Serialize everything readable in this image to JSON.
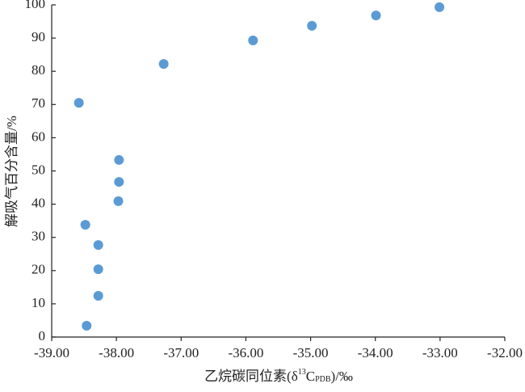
{
  "chart_data": {
    "type": "scatter",
    "x_label": {
      "main": "乙烷碳同位素(δ",
      "sup": "13",
      "base": "C",
      "sub": "PDB",
      "end": ")/‰"
    },
    "y_label": "解吸气百分含量/%",
    "x": [
      -38.58,
      -37.27,
      -35.89,
      -34.98,
      -33.99,
      -33.01,
      -37.96,
      -37.96,
      -37.97,
      -38.48,
      -38.28,
      -38.28,
      -38.28,
      -38.46
    ],
    "values": [
      70.5,
      82.2,
      89.3,
      93.7,
      96.8,
      99.3,
      53.3,
      46.7,
      40.9,
      33.8,
      27.7,
      20.4,
      12.4,
      3.4
    ],
    "color": "#5b9bd5",
    "xlim": [
      -39,
      -32
    ],
    "xticks": [
      {
        "value": -39,
        "label": "-39.00"
      },
      {
        "value": -38,
        "label": "-38.00"
      },
      {
        "value": -37,
        "label": "-37.00"
      },
      {
        "value": -36,
        "label": "-36.00"
      },
      {
        "value": -35,
        "label": "-35.00"
      },
      {
        "value": -34,
        "label": "-34.00"
      },
      {
        "value": -33,
        "label": "-33.00"
      },
      {
        "value": -32,
        "label": "-32.00"
      }
    ],
    "ylim": [
      0,
      100
    ],
    "yticks": [
      0,
      10,
      20,
      30,
      40,
      50,
      60,
      70,
      80,
      90,
      100
    ],
    "grid": false
  }
}
